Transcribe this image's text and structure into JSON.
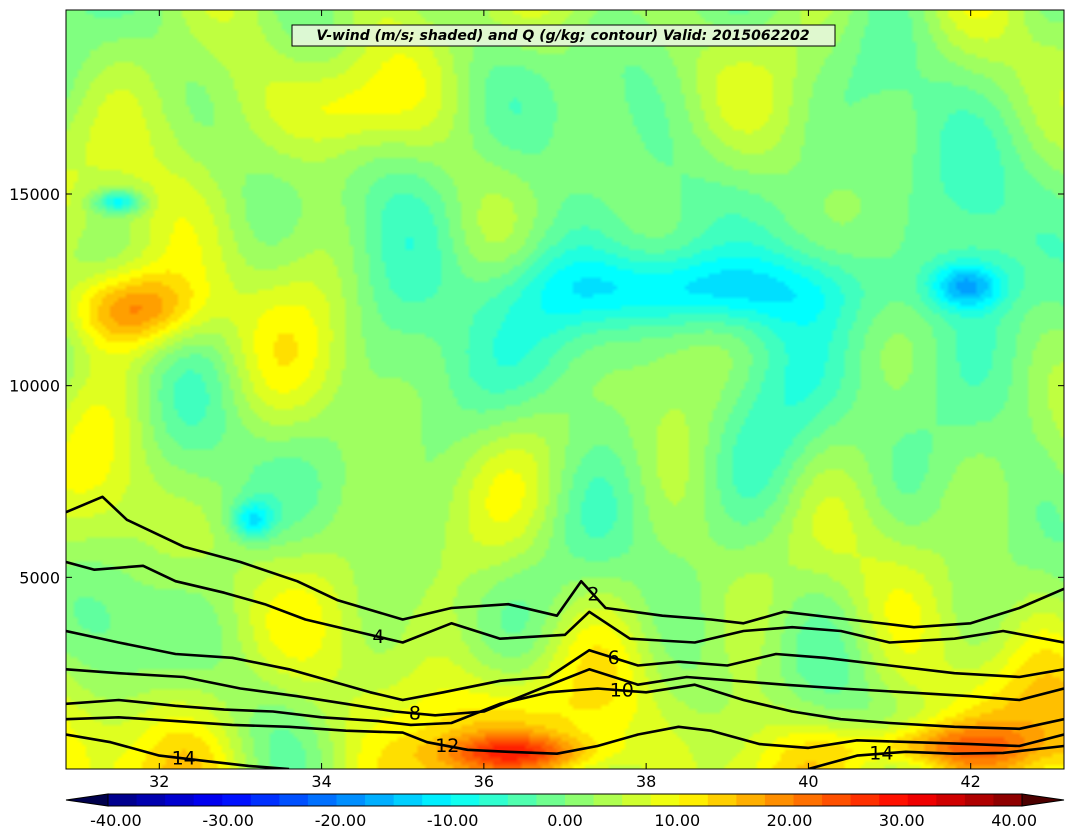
{
  "chart_data": {
    "type": "heatmap",
    "title": "V-wind (m/s; shaded) and Q (g/kg; contour) Valid: 2015062202",
    "xlabel": "",
    "ylabel": "",
    "xlim": [
      30.85,
      43.15
    ],
    "ylim": [
      0,
      19800
    ],
    "x_ticks": [
      32,
      34,
      36,
      38,
      40,
      42
    ],
    "x_tick_labels": [
      "32",
      "34",
      "36",
      "38",
      "40",
      "42"
    ],
    "y_ticks": [
      5000,
      10000,
      15000
    ],
    "y_tick_labels": [
      "5000",
      "10000",
      "15000"
    ],
    "colormap": "jet",
    "colorbar": {
      "vmin": -40,
      "vmax": 40,
      "levels": 33,
      "extend": "both",
      "tick_values": [
        -40,
        -30,
        -20,
        -10,
        0,
        10,
        20,
        30,
        40
      ],
      "tick_labels": [
        "-40.00",
        "-30.00",
        "-20.00",
        "-10.00",
        "0.00",
        "10.00",
        "20.00",
        "30.00",
        "40.00"
      ]
    },
    "shading_features": [
      {
        "x": [
          30.85,
          32.5
        ],
        "y": [
          11000,
          13000
        ],
        "v": 18
      },
      {
        "x": [
          31.2,
          31.8
        ],
        "y": [
          14500,
          15100
        ],
        "v": -12
      },
      {
        "x": [
          32.9,
          33.4
        ],
        "y": [
          6000,
          7000
        ],
        "v": -10
      },
      {
        "x": [
          36.7,
          40.5
        ],
        "y": [
          11500,
          13500
        ],
        "v": -10
      },
      {
        "x": [
          41.5,
          42.4
        ],
        "y": [
          12000,
          13200
        ],
        "v": -12
      },
      {
        "x": [
          35.5,
          37.4
        ],
        "y": [
          0,
          900
        ],
        "v": 14
      },
      {
        "x": [
          40.3,
          42.7
        ],
        "y": [
          0,
          1200
        ],
        "v": 14
      },
      {
        "x": [
          33.5,
          35.0
        ],
        "y": [
          16000,
          18500
        ],
        "v": 10
      }
    ],
    "contours": [
      {
        "label": "2",
        "x": [
          30.85,
          31.3,
          31.6,
          32.3,
          33.0,
          33.7,
          34.2,
          35.0,
          35.6,
          36.3,
          36.9,
          37.2,
          37.5,
          38.2,
          38.8,
          39.2,
          39.7,
          40.5,
          41.3,
          42.0,
          42.6,
          43.15
        ],
        "y": [
          6700,
          7100,
          6500,
          5800,
          5400,
          4900,
          4400,
          3900,
          4200,
          4300,
          4000,
          4900,
          4200,
          4000,
          3900,
          3800,
          4100,
          3900,
          3700,
          3800,
          4200,
          4700
        ]
      },
      {
        "label": "4",
        "x": [
          30.85,
          31.2,
          31.8,
          32.2,
          32.8,
          33.3,
          33.8,
          34.4,
          35.0,
          35.6,
          36.2,
          37.0,
          37.3,
          37.8,
          38.6,
          39.2,
          39.8,
          40.4,
          41.0,
          41.8,
          42.4,
          43.15
        ],
        "y": [
          5400,
          5200,
          5300,
          4900,
          4600,
          4300,
          3900,
          3600,
          3300,
          3800,
          3400,
          3500,
          4100,
          3400,
          3300,
          3600,
          3700,
          3600,
          3300,
          3400,
          3600,
          3300
        ]
      },
      {
        "label": "6",
        "x": [
          30.85,
          31.5,
          32.2,
          32.9,
          33.6,
          34.1,
          34.6,
          35.0,
          35.5,
          36.2,
          36.8,
          37.3,
          37.9,
          38.4,
          39.0,
          39.6,
          40.2,
          41.0,
          41.8,
          42.6,
          43.15
        ],
        "y": [
          3600,
          3300,
          3000,
          2900,
          2600,
          2300,
          2000,
          1800,
          2000,
          2300,
          2400,
          3100,
          2700,
          2800,
          2700,
          3000,
          2900,
          2700,
          2500,
          2400,
          2600
        ]
      },
      {
        "label": "8",
        "x": [
          30.85,
          31.5,
          32.3,
          33.0,
          33.7,
          34.3,
          34.9,
          35.4,
          36.0,
          36.7,
          37.3,
          37.9,
          38.5,
          39.1,
          39.7,
          40.4,
          41.2,
          42.0,
          42.6,
          43.15
        ],
        "y": [
          2600,
          2500,
          2400,
          2100,
          1900,
          1700,
          1500,
          1400,
          1500,
          2100,
          2600,
          2200,
          2400,
          2300,
          2200,
          2100,
          2000,
          1900,
          1800,
          2100
        ]
      },
      {
        "label": "10",
        "x": [
          30.85,
          31.5,
          32.2,
          32.8,
          33.4,
          34.0,
          34.7,
          35.1,
          35.6,
          36.2,
          36.8,
          37.4,
          38.0,
          38.6,
          39.2,
          39.8,
          40.4,
          41.0,
          41.8,
          42.6,
          43.15
        ],
        "y": [
          1700,
          1800,
          1650,
          1550,
          1500,
          1350,
          1250,
          1150,
          1200,
          1700,
          2000,
          2100,
          2000,
          2200,
          1800,
          1500,
          1300,
          1200,
          1100,
          1050,
          1300
        ]
      },
      {
        "label": "12",
        "x": [
          30.85,
          31.5,
          32.2,
          32.9,
          33.6,
          34.3,
          35.0,
          35.3,
          35.8,
          36.3,
          36.9,
          37.4,
          37.9,
          38.4,
          38.8,
          39.4,
          40.0,
          40.6,
          41.3,
          42.0,
          42.6,
          43.15
        ],
        "y": [
          1300,
          1350,
          1250,
          1150,
          1100,
          1000,
          950,
          700,
          500,
          450,
          400,
          600,
          900,
          1100,
          1000,
          650,
          550,
          750,
          700,
          650,
          600,
          900
        ]
      },
      {
        "label": "14",
        "x": [
          30.85,
          31.4,
          32.0,
          32.6,
          33.1,
          33.6
        ],
        "y": [
          900,
          700,
          350,
          200,
          80,
          0
        ]
      },
      {
        "label": "14",
        "x": [
          40.0,
          40.6,
          41.2,
          41.8,
          42.4,
          43.15
        ],
        "y": [
          0,
          350,
          450,
          400,
          420,
          600
        ]
      }
    ]
  }
}
